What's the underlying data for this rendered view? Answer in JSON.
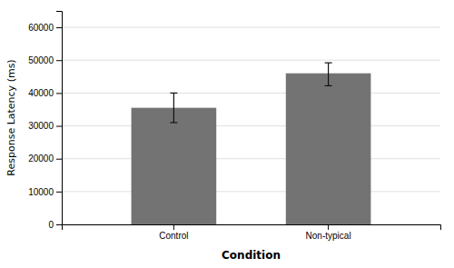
{
  "chart_data": {
    "type": "bar",
    "categories": [
      "Control",
      "Non-typical"
    ],
    "values": [
      35500,
      46000
    ],
    "errors_upper": [
      4500,
      3200
    ],
    "errors_lower": [
      4500,
      3800
    ],
    "color": "#737373",
    "xlabel": "Condition",
    "ylabel": "Response Latency (ms)",
    "ylim": [
      0,
      65000
    ],
    "yticks": [
      0,
      10000,
      20000,
      30000,
      40000,
      50000,
      60000
    ],
    "grid": true
  }
}
